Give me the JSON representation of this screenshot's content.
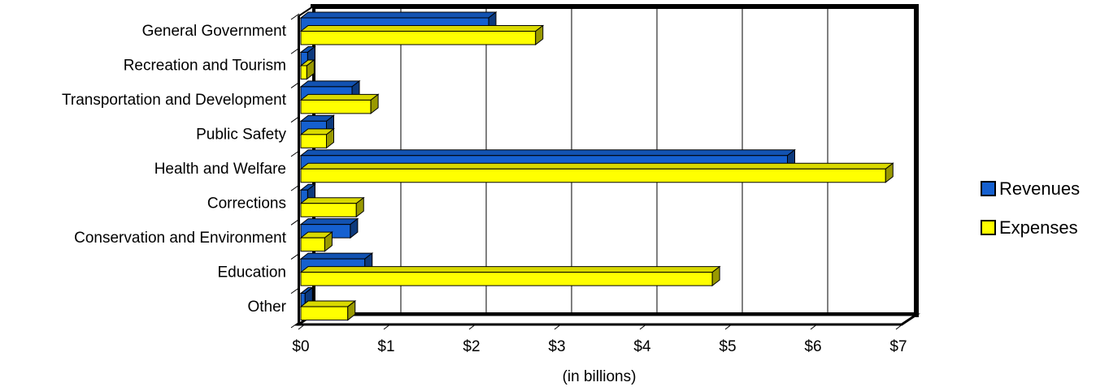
{
  "chart_data": {
    "type": "bar",
    "orientation": "horizontal",
    "style": "3d",
    "categories": [
      "General Government",
      "Recreation and Tourism",
      "Transportation and Development",
      "Public Safety",
      "Health and Welfare",
      "Corrections",
      "Conservation and Environment",
      "Education",
      "Other"
    ],
    "series": [
      {
        "name": "Revenues",
        "color": "#1560d0",
        "values": [
          2.2,
          0.08,
          0.6,
          0.3,
          5.7,
          0.08,
          0.58,
          0.75,
          0.05
        ]
      },
      {
        "name": "Expenses",
        "color": "#ffff00",
        "values": [
          2.75,
          0.07,
          0.82,
          0.3,
          6.85,
          0.65,
          0.28,
          4.82,
          0.55
        ]
      }
    ],
    "x_ticks": [
      "$0",
      "$1",
      "$2",
      "$3",
      "$4",
      "$5",
      "$6",
      "$7"
    ],
    "xlim": [
      0,
      7
    ],
    "xlabel": "(in billions)",
    "grid": true,
    "legend_position": "right"
  }
}
